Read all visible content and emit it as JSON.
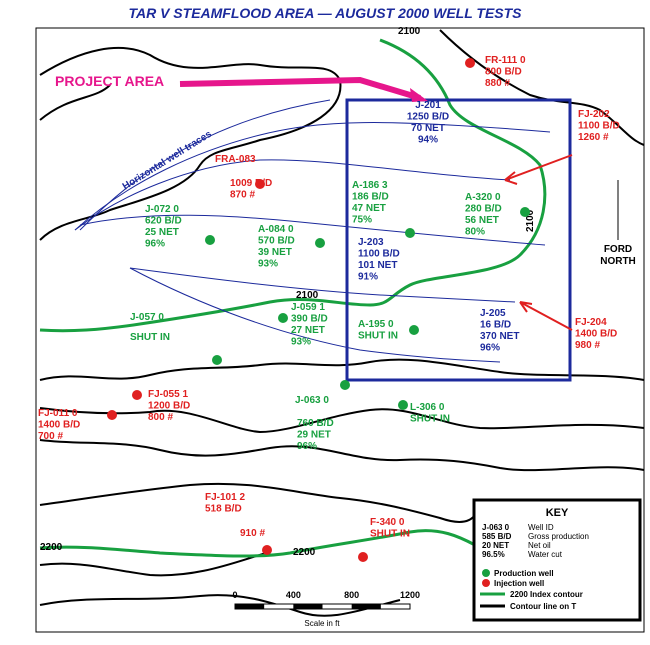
{
  "title": "TAR V STEAMFLOOD AREA — AUGUST 2000 WELL TESTS",
  "annotations": [
    "PROJECT AREA",
    "Horizontal well traces"
  ],
  "contour_labels": [
    "2100",
    "2100",
    "2100",
    "2200",
    "2200"
  ],
  "labels": [
    {
      "color": "#e02020",
      "lines": [
        "FR-111 0",
        "800 B/D",
        "880 #"
      ]
    },
    {
      "color": "#1c2a9c",
      "lines": [
        "J-201",
        "1250 B/D",
        "70 NET",
        "94%"
      ]
    },
    {
      "color": "#e02020",
      "lines": [
        "FJ-202",
        "1100 B/D",
        "1260 #"
      ]
    },
    {
      "color": "#e02020",
      "lines": [
        "FRA-083"
      ]
    },
    {
      "color": "#e02020",
      "lines": [
        "1009 B/D",
        "870 #"
      ]
    },
    {
      "color": "#18a040",
      "lines": [
        "A-186 3",
        "186 B/D",
        "47 NET",
        "75%"
      ]
    },
    {
      "color": "#18a040",
      "lines": [
        "A-320 0",
        "280 B/D",
        "56 NET",
        "80%"
      ]
    },
    {
      "color": "#18a040",
      "lines": [
        "J-072 0",
        "620 B/D",
        "25 NET",
        "96%"
      ]
    },
    {
      "color": "#18a040",
      "lines": [
        "A-084 0",
        "570 B/D",
        "39 NET",
        "93%"
      ]
    },
    {
      "color": "#1c2a9c",
      "lines": [
        "J-203",
        "1100 B/D",
        "101 NET",
        "91%"
      ]
    },
    {
      "color": "#18a040",
      "lines": [
        "J-057 0"
      ]
    },
    {
      "color": "#18a040",
      "lines": [
        "SHUT IN"
      ]
    },
    {
      "color": "#18a040",
      "lines": [
        "J-059 1",
        "390 B/D",
        "27 NET",
        "93%"
      ]
    },
    {
      "color": "#18a040",
      "lines": [
        "A-195 0",
        "SHUT IN"
      ]
    },
    {
      "color": "#1c2a9c",
      "lines": [
        "J-205",
        "16 B/D",
        "370 NET",
        "96%"
      ]
    },
    {
      "color": "#e02020",
      "lines": [
        "FJ-204",
        "1400 B/D",
        "980 #"
      ]
    },
    {
      "color": "#e02020",
      "lines": [
        "FJ-055 1",
        "1200 B/D",
        "800 #"
      ]
    },
    {
      "color": "#e02020",
      "lines": [
        "FJ-011 0",
        "1400 B/D",
        "700 #"
      ]
    },
    {
      "color": "#18a040",
      "lines": [
        "J-063 0"
      ]
    },
    {
      "color": "#18a040",
      "lines": [
        "760 B/D",
        "29 NET",
        "96%"
      ]
    },
    {
      "color": "#18a040",
      "lines": [
        "L-306 0",
        "SHUT IN"
      ]
    },
    {
      "color": "#e02020",
      "lines": [
        "FJ-101 2",
        "518 B/D"
      ]
    },
    {
      "color": "#e02020",
      "lines": [
        "910 #"
      ]
    },
    {
      "color": "#e02020",
      "lines": [
        "F-340 0",
        "SHUT IN"
      ]
    }
  ],
  "north": [
    "FORD",
    "NORTH"
  ],
  "scale": {
    "ticks": [
      0,
      400,
      800,
      1200
    ],
    "label": "Scale in ft"
  },
  "key": {
    "title": "KEY",
    "rows": [
      [
        "J-063 0",
        "Well ID"
      ],
      [
        "585 B/D",
        "Gross production"
      ],
      [
        "20 NET",
        "Net oil"
      ],
      [
        "96.5%",
        "Water cut"
      ]
    ],
    "production": "Production well",
    "injection": "Injection well",
    "index_value": "2200",
    "index": "Index contour",
    "contour": "Contour line on T"
  }
}
